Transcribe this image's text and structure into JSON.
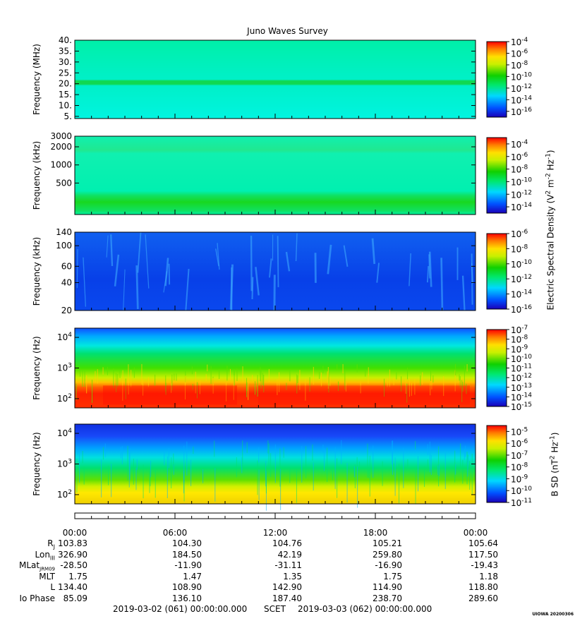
{
  "title": "Juno Waves Survey",
  "panels": [
    {
      "ylabel": "Frequency (MHz)",
      "scale": "linear",
      "ylim": [
        4,
        40
      ],
      "yticks": [
        {
          "v": 5,
          "t": "5."
        },
        {
          "v": 10,
          "t": "10."
        },
        {
          "v": 15,
          "t": "15."
        },
        {
          "v": 20,
          "t": "20."
        },
        {
          "v": 25,
          "t": "25."
        },
        {
          "v": 30,
          "t": "30."
        },
        {
          "v": 35,
          "t": "35."
        },
        {
          "v": 40,
          "t": "40."
        }
      ],
      "cbar": {
        "min": -17,
        "max": -4,
        "ticks": [
          {
            "v": -4,
            "t": "10^-4"
          },
          {
            "v": -6,
            "t": "10^-6"
          },
          {
            "v": -8,
            "t": "10^-8"
          },
          {
            "v": -10,
            "t": "10^-10"
          },
          {
            "v": -12,
            "t": "10^-12"
          },
          {
            "v": -14,
            "t": "10^-14"
          },
          {
            "v": -16,
            "t": "10^-16"
          }
        ]
      }
    },
    {
      "ylabel": "Frequency (kHz)",
      "scale": "log",
      "ylim": [
        150,
        3000
      ],
      "yticks": [
        {
          "v": 500,
          "t": "500"
        },
        {
          "v": 1000,
          "t": "1000"
        },
        {
          "v": 2000,
          "t": "2000"
        },
        {
          "v": 3000,
          "t": "3000"
        }
      ],
      "cbar": {
        "min": -15,
        "max": -3,
        "ticks": [
          {
            "v": -4,
            "t": "10^-4"
          },
          {
            "v": -6,
            "t": "10^-6"
          },
          {
            "v": -8,
            "t": "10^-8"
          },
          {
            "v": -10,
            "t": "10^-10"
          },
          {
            "v": -12,
            "t": "10^-12"
          },
          {
            "v": -14,
            "t": "10^-14"
          }
        ]
      }
    },
    {
      "ylabel": "Frequency (kHz)",
      "scale": "log",
      "ylim": [
        20,
        140
      ],
      "yticks": [
        {
          "v": 20,
          "t": "20"
        },
        {
          "v": 40,
          "t": "40"
        },
        {
          "v": 60,
          "t": "60"
        },
        {
          "v": 100,
          "t": "100"
        },
        {
          "v": 140,
          "t": "140"
        }
      ],
      "cbar": {
        "min": -16,
        "max": -6,
        "ticks": [
          {
            "v": -6,
            "t": "10^-6"
          },
          {
            "v": -8,
            "t": "10^-8"
          },
          {
            "v": -10,
            "t": "10^-10"
          },
          {
            "v": -12,
            "t": "10^-12"
          },
          {
            "v": -14,
            "t": "10^-14"
          },
          {
            "v": -16,
            "t": "10^-16"
          }
        ]
      }
    },
    {
      "ylabel": "Frequency (Hz)",
      "scale": "log",
      "ylim": [
        50,
        20000
      ],
      "yticks": [
        {
          "v": 100,
          "t": "10^2"
        },
        {
          "v": 1000,
          "t": "10^3"
        },
        {
          "v": 10000,
          "t": "10^4"
        }
      ],
      "cbar": {
        "min": -15,
        "max": -7,
        "ticks": [
          {
            "v": -7,
            "t": "10^-7"
          },
          {
            "v": -8,
            "t": "10^-8"
          },
          {
            "v": -9,
            "t": "10^-9"
          },
          {
            "v": -10,
            "t": "10^-10"
          },
          {
            "v": -11,
            "t": "10^-11"
          },
          {
            "v": -12,
            "t": "10^-12"
          },
          {
            "v": -13,
            "t": "10^-13"
          },
          {
            "v": -14,
            "t": "10^-14"
          },
          {
            "v": -15,
            "t": "10^-15"
          }
        ]
      }
    },
    {
      "ylabel": "Frequency (Hz)",
      "scale": "log",
      "ylim": [
        50,
        20000
      ],
      "yticks": [
        {
          "v": 100,
          "t": "10^2"
        },
        {
          "v": 1000,
          "t": "10^3"
        },
        {
          "v": 10000,
          "t": "10^4"
        }
      ],
      "cbar": {
        "min": -11,
        "max": -4.5,
        "ticks": [
          {
            "v": -5,
            "t": "10^-5"
          },
          {
            "v": -6,
            "t": "10^-6"
          },
          {
            "v": -7,
            "t": "10^-7"
          },
          {
            "v": -8,
            "t": "10^-8"
          },
          {
            "v": -9,
            "t": "10^-9"
          },
          {
            "v": -10,
            "t": "10^-10"
          },
          {
            "v": -11,
            "t": "10^-11"
          }
        ]
      }
    }
  ],
  "cbar_label_e": "Electric Spectral Density (V^2 m^-2 Hz^-1)",
  "cbar_label_b": "B SD (nT^2 Hz^-1)",
  "chart_data": {
    "type": "heatmap",
    "title": "Juno Waves Survey",
    "x_ticks": [
      "00:00",
      "06:00",
      "12:00",
      "18:00",
      "00:00"
    ],
    "ephemeris": [
      {
        "label": "RJ",
        "values": [
          "103.83",
          "104.30",
          "104.76",
          "105.21",
          "105.64"
        ]
      },
      {
        "label": "LonIII",
        "values": [
          "326.90",
          "184.50",
          "42.19",
          "259.80",
          "117.50"
        ]
      },
      {
        "label": "MLatJRM09",
        "values": [
          "-28.50",
          "-11.90",
          "-31.11",
          "-16.90",
          "-19.43"
        ]
      },
      {
        "label": "MLT",
        "values": [
          "1.75",
          "1.47",
          "1.35",
          "1.75",
          "1.18"
        ]
      },
      {
        "label": "L",
        "values": [
          "134.40",
          "108.90",
          "142.90",
          "114.90",
          "118.80"
        ]
      },
      {
        "label": "Io Phase",
        "values": [
          "85.09",
          "136.10",
          "187.40",
          "238.70",
          "289.60"
        ]
      }
    ]
  },
  "footer": {
    "start": "2019-03-02 (061) 00:00:00.000",
    "mid": "SCET",
    "end": "2019-03-03 (062) 00:00:00.000"
  },
  "stamp": "UIOWA 20200306"
}
